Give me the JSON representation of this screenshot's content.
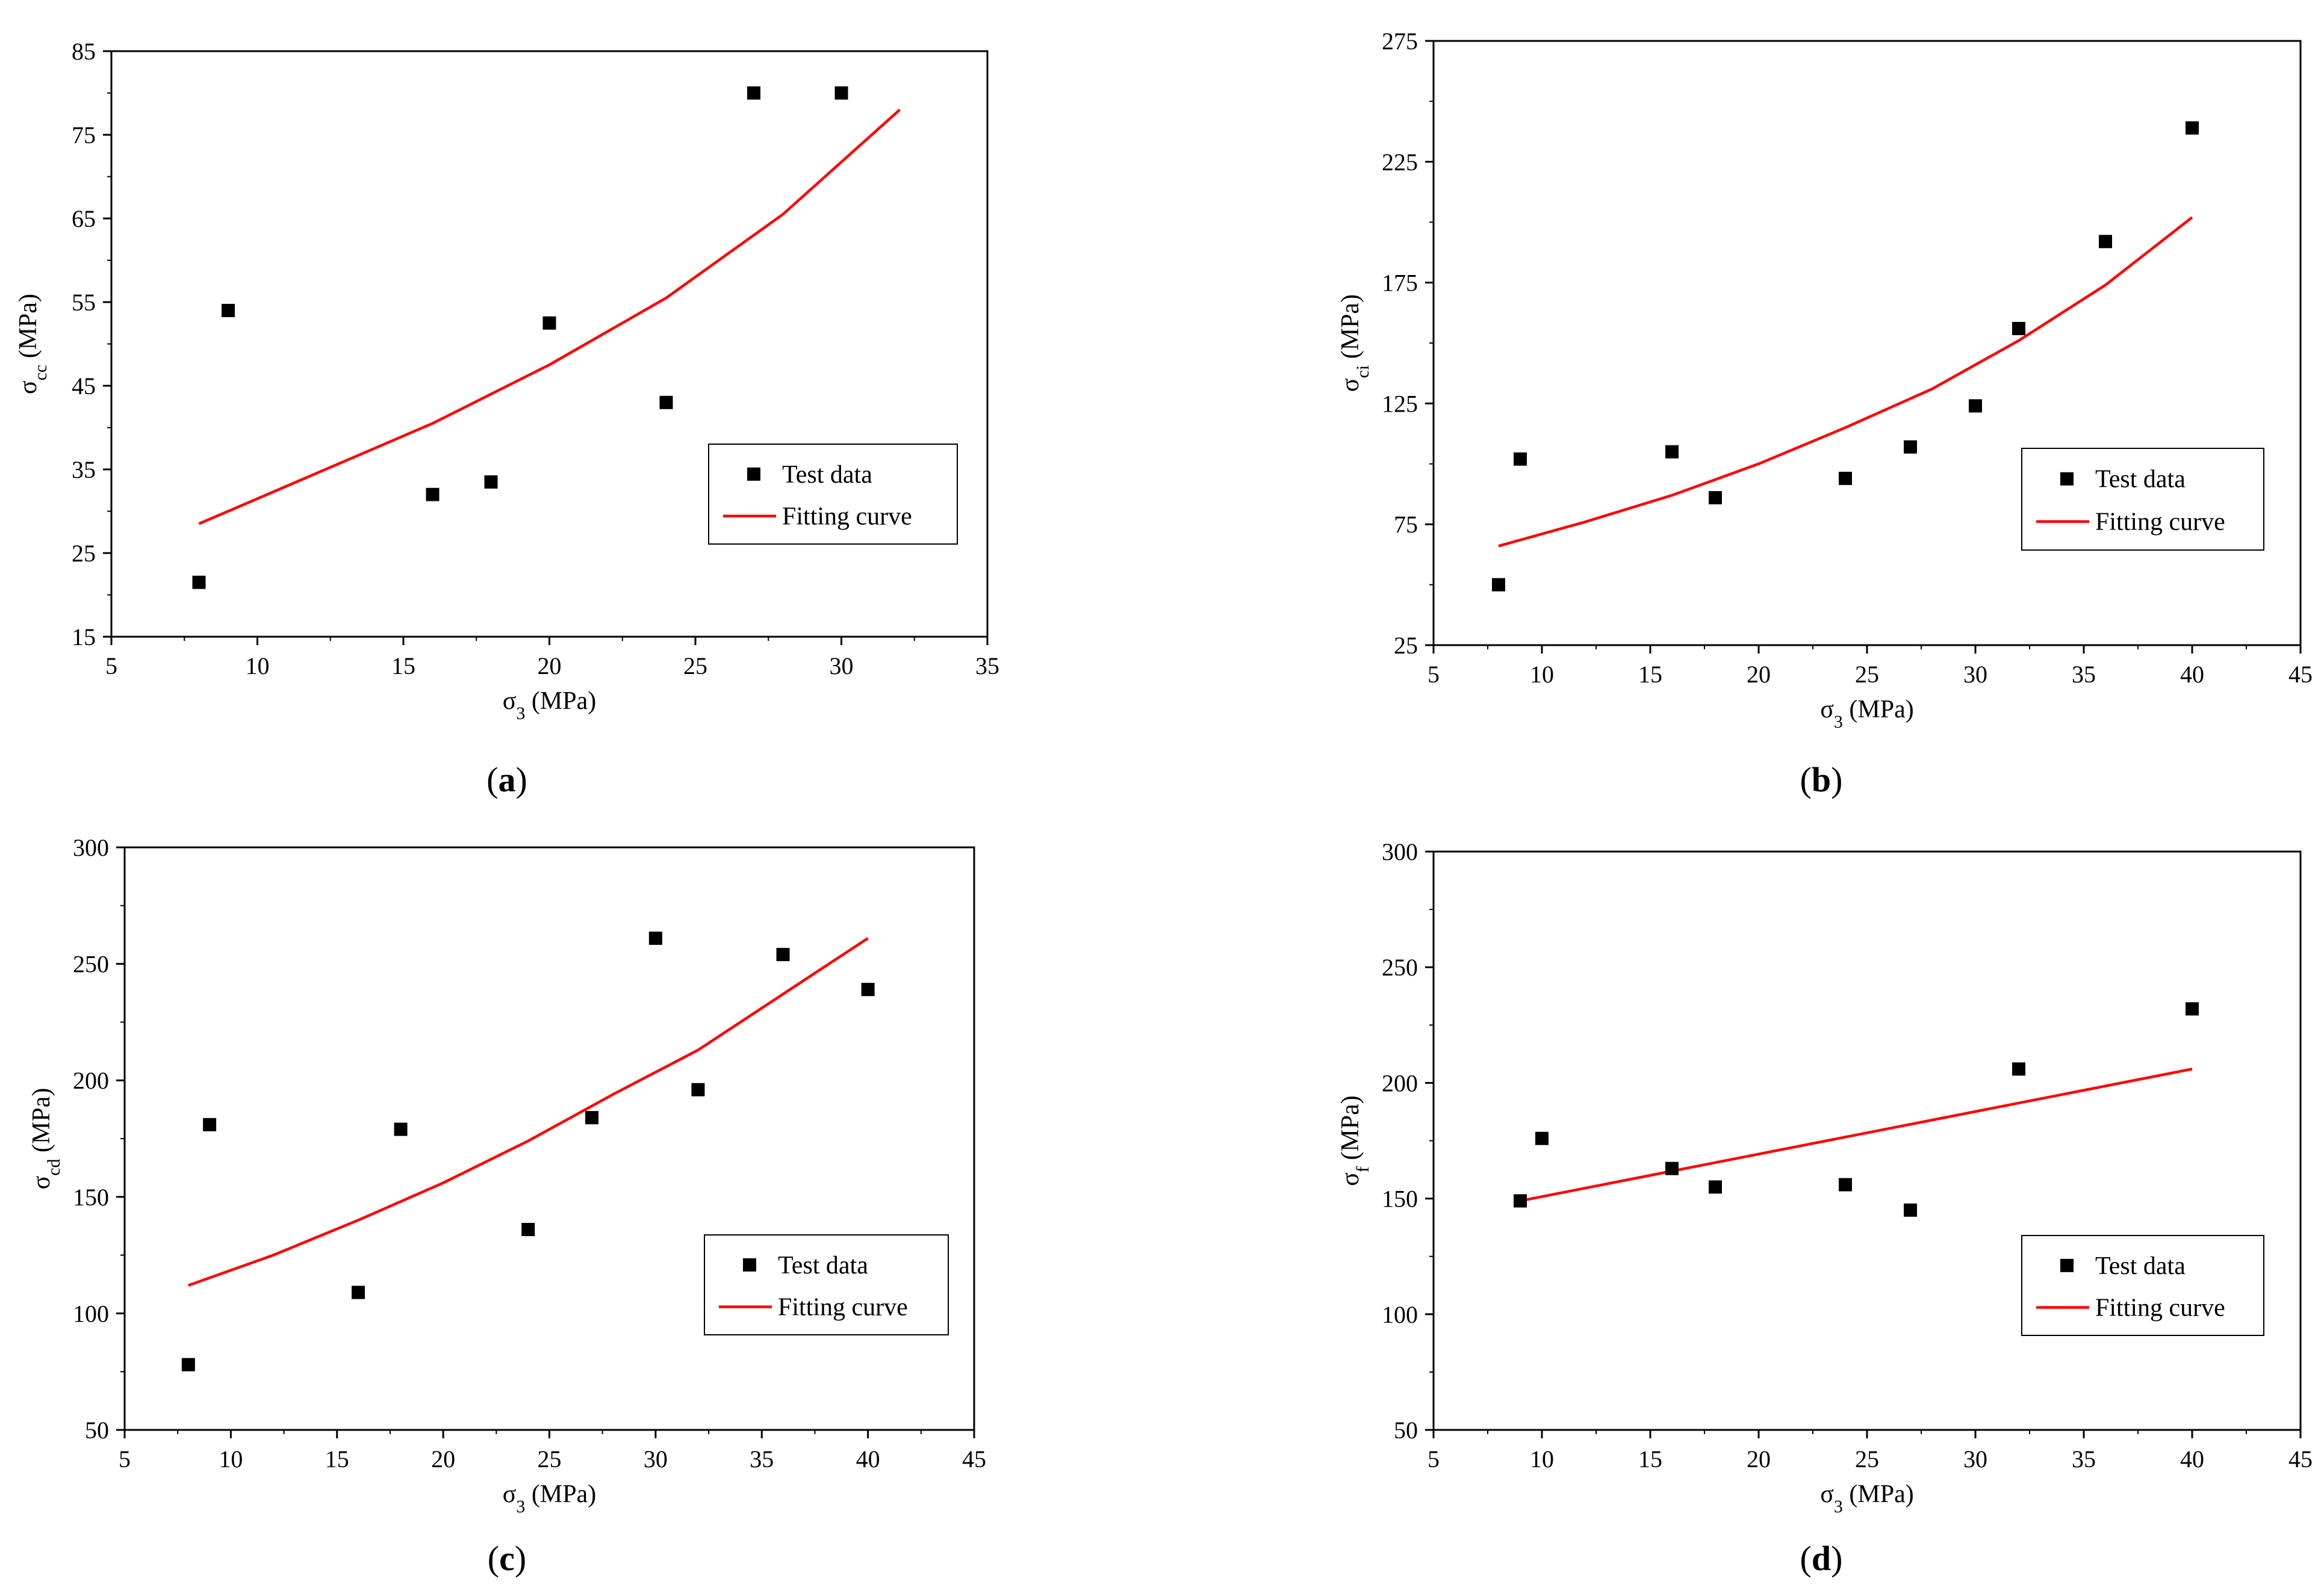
{
  "colors": {
    "fit": "#ff0000",
    "marker": "#000000",
    "frame": "#000000"
  },
  "chart_data": [
    {
      "id": "a",
      "type": "scatter",
      "caption": "a",
      "xlabel": {
        "symbol": "σ",
        "sub": "3",
        "unit": " (MPa)"
      },
      "ylabel": {
        "symbol": "σ",
        "sub": "cc",
        "unit": " (MPa)"
      },
      "xlim": [
        5,
        35
      ],
      "ylim": [
        15,
        85
      ],
      "xticks": [
        5,
        10,
        15,
        20,
        25,
        30,
        35
      ],
      "yticks": [
        15,
        25,
        35,
        45,
        55,
        65,
        75,
        85
      ],
      "series": [
        {
          "name": "Test data",
          "kind": "points",
          "x": [
            8,
            9,
            16,
            18,
            20,
            24,
            27,
            30
          ],
          "y": [
            21.5,
            54,
            32,
            33.5,
            52.5,
            43,
            80,
            80
          ]
        },
        {
          "name": "Fitting curve",
          "kind": "line",
          "x": [
            8,
            12,
            16,
            20,
            24,
            28,
            32
          ],
          "y": [
            28.5,
            34.5,
            40.5,
            47.5,
            55.5,
            65.5,
            78
          ]
        }
      ],
      "legend": [
        "Test data",
        "Fitting curve"
      ]
    },
    {
      "id": "b",
      "type": "scatter",
      "caption": "b",
      "xlabel": {
        "symbol": "σ",
        "sub": "3",
        "unit": " (MPa)"
      },
      "ylabel": {
        "symbol": "σ",
        "sub": "ci",
        "unit": " (MPa)"
      },
      "xlim": [
        5,
        45
      ],
      "ylim": [
        25,
        275
      ],
      "xticks": [
        5,
        10,
        15,
        20,
        25,
        30,
        35,
        40,
        45
      ],
      "yticks": [
        25,
        75,
        125,
        175,
        225,
        275
      ],
      "series": [
        {
          "name": "Test data",
          "kind": "points",
          "x": [
            8,
            9,
            16,
            18,
            24,
            27,
            30,
            32,
            36,
            40
          ],
          "y": [
            50,
            102,
            105,
            86,
            94,
            107,
            124,
            156,
            192,
            239
          ]
        },
        {
          "name": "Fitting curve",
          "kind": "line",
          "x": [
            8,
            12,
            16,
            20,
            24,
            28,
            32,
            36,
            40
          ],
          "y": [
            66,
            76,
            87,
            100,
            115,
            131,
            151,
            174,
            202
          ]
        }
      ],
      "legend": [
        "Test data",
        "Fitting curve"
      ]
    },
    {
      "id": "c",
      "type": "scatter",
      "caption": "c",
      "xlabel": {
        "symbol": "σ",
        "sub": "3",
        "unit": " (MPa)"
      },
      "ylabel": {
        "symbol": "σ",
        "sub": "cd",
        "unit": " (MPa)"
      },
      "xlim": [
        5,
        45
      ],
      "ylim": [
        50,
        300
      ],
      "xticks": [
        5,
        10,
        15,
        20,
        25,
        30,
        35,
        40,
        45
      ],
      "yticks": [
        50,
        100,
        150,
        200,
        250,
        300
      ],
      "series": [
        {
          "name": "Test data",
          "kind": "points",
          "x": [
            8,
            9,
            16,
            18,
            24,
            27,
            30,
            32,
            36,
            40
          ],
          "y": [
            78,
            181,
            109,
            179,
            136,
            184,
            261,
            196,
            254,
            239
          ]
        },
        {
          "name": "Fitting curve",
          "kind": "line",
          "x": [
            8,
            12,
            16,
            20,
            24,
            28,
            32,
            36,
            40
          ],
          "y": [
            112,
            125,
            140,
            156,
            174,
            194,
            213,
            237,
            261
          ]
        }
      ],
      "legend": [
        "Test data",
        "Fitting curve"
      ]
    },
    {
      "id": "d",
      "type": "scatter",
      "caption": "d",
      "xlabel": {
        "symbol": "σ",
        "sub": "3",
        "unit": " (MPa)"
      },
      "ylabel": {
        "symbol": "σ",
        "sub": "f",
        "unit": " (MPa)"
      },
      "xlim": [
        5,
        45
      ],
      "ylim": [
        50,
        300
      ],
      "xticks": [
        5,
        10,
        15,
        20,
        25,
        30,
        35,
        40,
        45
      ],
      "yticks": [
        50,
        100,
        150,
        200,
        250,
        300
      ],
      "series": [
        {
          "name": "Test data",
          "kind": "points",
          "x": [
            9,
            10,
            16,
            18,
            24,
            27,
            32,
            40
          ],
          "y": [
            149,
            176,
            163,
            155,
            156,
            145,
            206,
            232
          ]
        },
        {
          "name": "Fitting curve",
          "kind": "line",
          "x": [
            9,
            40
          ],
          "y": [
            149,
            206
          ]
        }
      ],
      "legend": [
        "Test data",
        "Fitting curve"
      ]
    }
  ]
}
